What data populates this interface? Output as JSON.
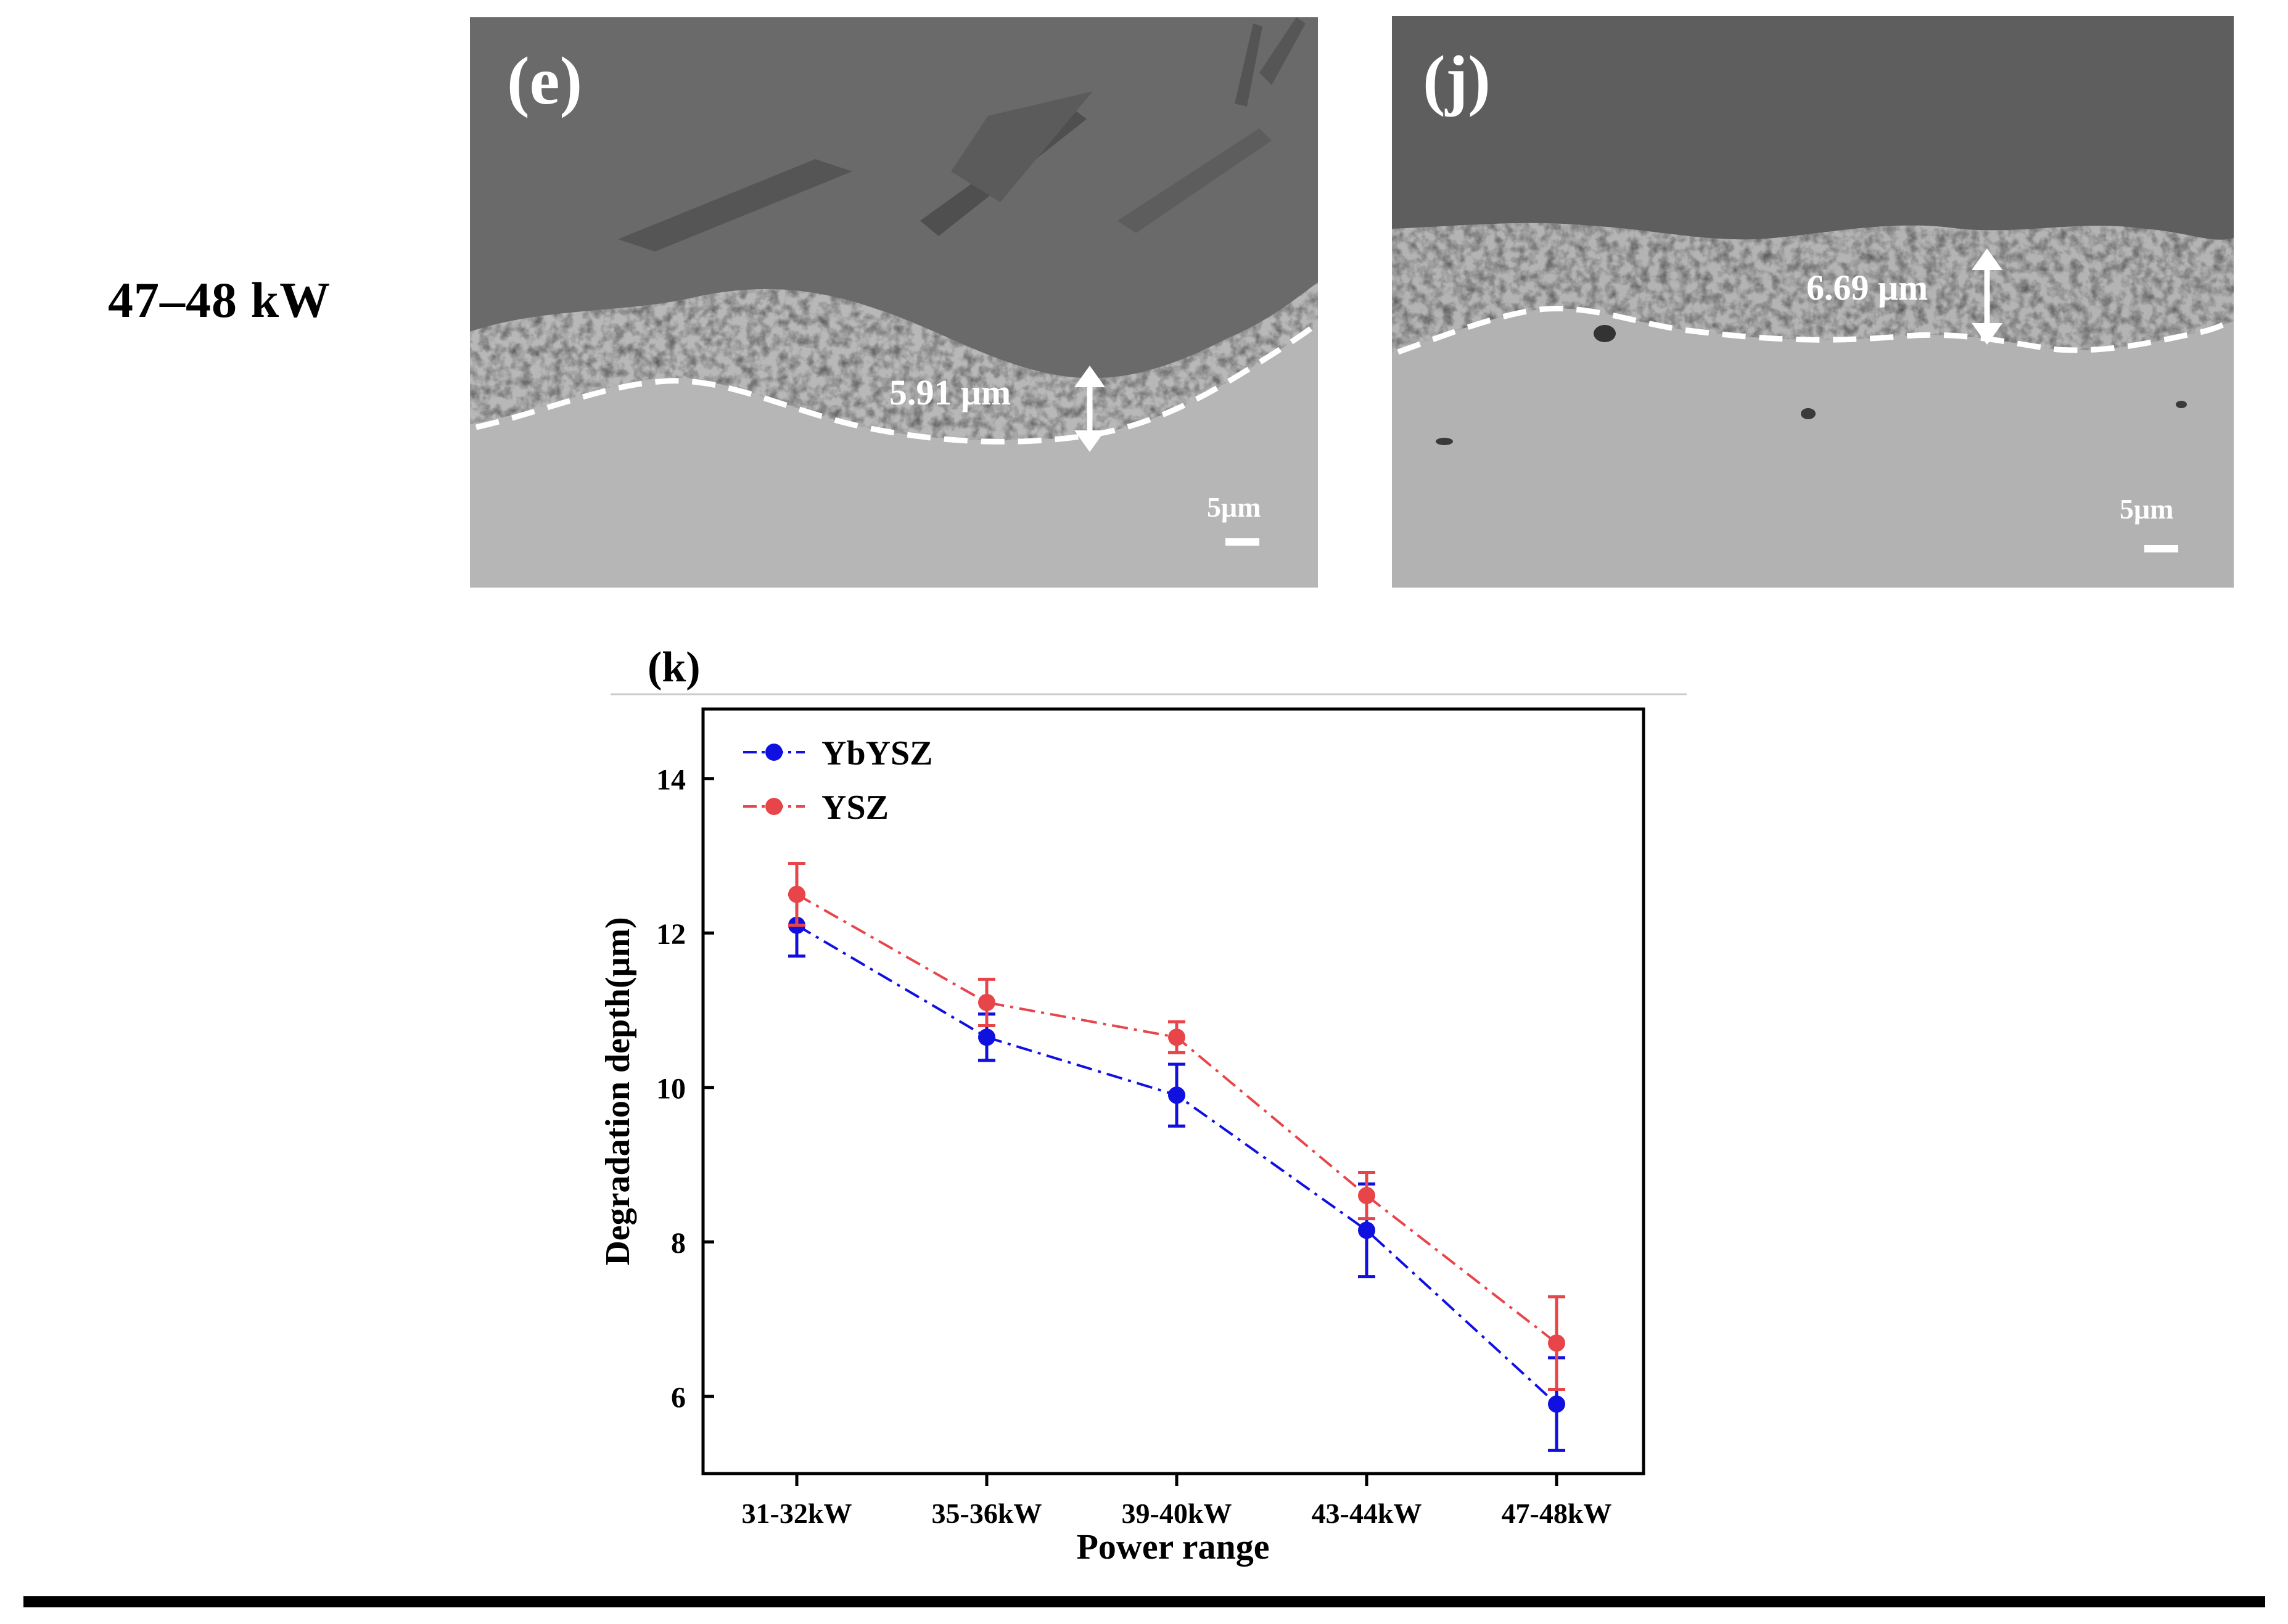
{
  "row_label": "47–48 kW",
  "panels": {
    "e": {
      "label": "(e)",
      "depth": "5.91 μm",
      "scale": "5μm"
    },
    "j": {
      "label": "(j)",
      "depth": "6.69 μm",
      "scale": "5μm"
    }
  },
  "chart_data": {
    "panel_label": "(k)",
    "type": "line",
    "xlabel": "Power range",
    "ylabel": "Degradation depth(μm)",
    "categories": [
      "31-32kW",
      "35-36kW",
      "39-40kW",
      "43-44kW",
      "47-48kW"
    ],
    "ylim": [
      5,
      14.9
    ],
    "yticks": [
      6,
      8,
      10,
      12,
      14
    ],
    "legend_position": "top-left",
    "series": [
      {
        "name": "YbYSZ",
        "color": "#1010e0",
        "values": [
          12.1,
          10.65,
          9.9,
          8.15,
          5.9
        ],
        "errors": [
          0.4,
          0.3,
          0.4,
          0.6,
          0.6
        ]
      },
      {
        "name": "YSZ",
        "color": "#e8454a",
        "values": [
          12.5,
          11.1,
          10.65,
          8.6,
          6.69
        ],
        "errors": [
          0.4,
          0.3,
          0.2,
          0.3,
          0.6
        ]
      }
    ]
  }
}
